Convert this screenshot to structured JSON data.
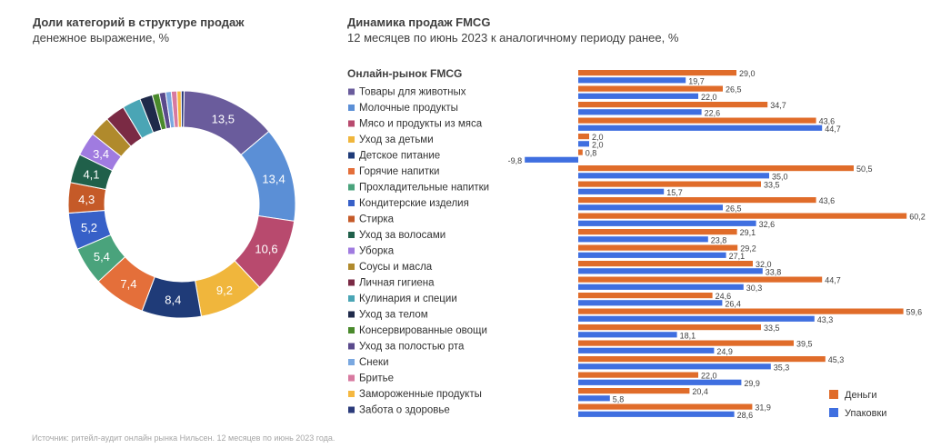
{
  "left_panel": {
    "title": "Доли категорий в структуре продаж",
    "subtitle": "денежное выражение, %"
  },
  "right_panel": {
    "title": "Динамика продаж FMCG",
    "subtitle": "12 месяцев по июнь 2023 к аналогичному периоду ранее, %"
  },
  "source": "Источник: ритейл-аудит онлайн рынка Нильсен. 12 месяцев по июнь 2023 года.",
  "chart_data": [
    {
      "type": "pie",
      "title": "Доли категорий в структуре продаж",
      "subtitle": "денежное выражение, %",
      "donut": true,
      "slices": [
        {
          "label": "Товары для животных",
          "value": 13.5,
          "display": "13,5",
          "color": "#6a5c9c"
        },
        {
          "label": "Молочные продукты",
          "value": 13.4,
          "display": "13,4",
          "color": "#5b8fd6"
        },
        {
          "label": "Мясо и продукты из мяса",
          "value": 10.6,
          "display": "10,6",
          "color": "#b84a6e"
        },
        {
          "label": "Уход за детьми",
          "value": 9.2,
          "display": "9,2",
          "color": "#f0b63c"
        },
        {
          "label": "Детское питание",
          "value": 8.4,
          "display": "8,4",
          "color": "#1f3b78"
        },
        {
          "label": "Горячие напитки",
          "value": 7.4,
          "display": "7,4",
          "color": "#e46f3a"
        },
        {
          "label": "Прохладительные напитки",
          "value": 5.4,
          "display": "5,4",
          "color": "#4aa37c"
        },
        {
          "label": "Кондитерские изделия",
          "value": 5.2,
          "display": "5,2",
          "color": "#3760c8"
        },
        {
          "label": "Стирка",
          "value": 4.3,
          "display": "4,3",
          "color": "#c55a28"
        },
        {
          "label": "Уход за волосами",
          "value": 4.1,
          "display": "4,1",
          "color": "#20604a"
        },
        {
          "label": "Уборка",
          "value": 3.4,
          "display": "3,4",
          "color": "#a07be0"
        },
        {
          "label": "Соусы и масла",
          "value": 2.9,
          "display": "",
          "color": "#b08a2c"
        },
        {
          "label": "Личная гигиена",
          "value": 2.8,
          "display": "",
          "color": "#7a2a44"
        },
        {
          "label": "Кулинария и специи",
          "value": 2.6,
          "display": "",
          "color": "#4aa5b5"
        },
        {
          "label": "Уход за телом",
          "value": 1.8,
          "display": "",
          "color": "#1f2a4a"
        },
        {
          "label": "Консервированные овощи",
          "value": 1.0,
          "display": "",
          "color": "#4a8a2c"
        },
        {
          "label": "Уход за полостью рта",
          "value": 0.9,
          "display": "",
          "color": "#5a4a8c"
        },
        {
          "label": "Снеки",
          "value": 0.8,
          "display": "",
          "color": "#7aa8e0"
        },
        {
          "label": "Бритье",
          "value": 0.8,
          "display": "",
          "color": "#d87aa0"
        },
        {
          "label": "Замороженные продукты",
          "value": 0.6,
          "display": "",
          "color": "#f5b840"
        },
        {
          "label": "Забота о здоровье",
          "value": 0.4,
          "display": "",
          "color": "#2a3a7a"
        }
      ]
    },
    {
      "type": "bar",
      "orientation": "horizontal",
      "title": "Динамика продаж FMCG",
      "subtitle": "12 месяцев по июнь 2023 к аналогичному периоду ранее, %",
      "categories": [
        "Онлайн-рынок FMCG",
        "Товары для животных",
        "Молочные продукты",
        "Мясо и продукты из мяса",
        "Уход за детьми",
        "Детское питание",
        "Горячие напитки",
        "Прохладительные напитки",
        "Кондитерские изделия",
        "Стирка",
        "Уход за волосами",
        "Уборка",
        "Соусы и масла",
        "Личная гигиена",
        "Кулинария и специи",
        "Уход за телом",
        "Консервированные овощи",
        "Уход за полостью рта",
        "Снеки",
        "Бритье",
        "Замороженные продукты",
        "Забота о здоровье"
      ],
      "category_colors": [
        "",
        "#6a5c9c",
        "#5b8fd6",
        "#b84a6e",
        "#f0b63c",
        "#1f3b78",
        "#e46f3a",
        "#4aa37c",
        "#3760c8",
        "#c55a28",
        "#20604a",
        "#a07be0",
        "#b08a2c",
        "#7a2a44",
        "#4aa5b5",
        "#1f2a4a",
        "#4a8a2c",
        "#5a4a8c",
        "#7aa8e0",
        "#d87aa0",
        "#f5b840",
        "#2a3a7a"
      ],
      "series": [
        {
          "name": "Деньги",
          "color": "#e06c2a",
          "values": [
            29.0,
            26.5,
            34.7,
            43.6,
            2.0,
            0.8,
            50.5,
            33.5,
            43.6,
            60.2,
            29.1,
            29.2,
            32.0,
            44.7,
            24.6,
            59.6,
            33.5,
            39.5,
            45.3,
            22.0,
            20.4,
            31.9
          ],
          "labels": [
            "29,0",
            "26,5",
            "34,7",
            "43,6",
            "2,0",
            "0,8",
            "50,5",
            "33,5",
            "43,6",
            "60,2",
            "29,1",
            "29,2",
            "32,0",
            "44,7",
            "24,6",
            "59,6",
            "33,5",
            "39,5",
            "45,3",
            "22,0",
            "20,4",
            "31,9"
          ]
        },
        {
          "name": "Упаковки",
          "color": "#3f6fe0",
          "values": [
            19.7,
            22.0,
            22.6,
            44.7,
            2.0,
            -9.8,
            35.0,
            15.7,
            26.5,
            32.6,
            23.8,
            27.1,
            33.8,
            30.3,
            26.4,
            43.3,
            18.1,
            24.9,
            35.3,
            29.9,
            5.8,
            28.6
          ],
          "labels": [
            "19,7",
            "22,0",
            "22,6",
            "44,7",
            "2,0",
            "-9,8",
            "35,0",
            "15,7",
            "26,5",
            "32,6",
            "23,8",
            "27,1",
            "33,8",
            "30,3",
            "26,4",
            "43,3",
            "18,1",
            "24,9",
            "35,3",
            "29,9",
            "5,8",
            "28,6"
          ]
        }
      ],
      "legend_position": "bottom-right",
      "grid": false
    }
  ]
}
